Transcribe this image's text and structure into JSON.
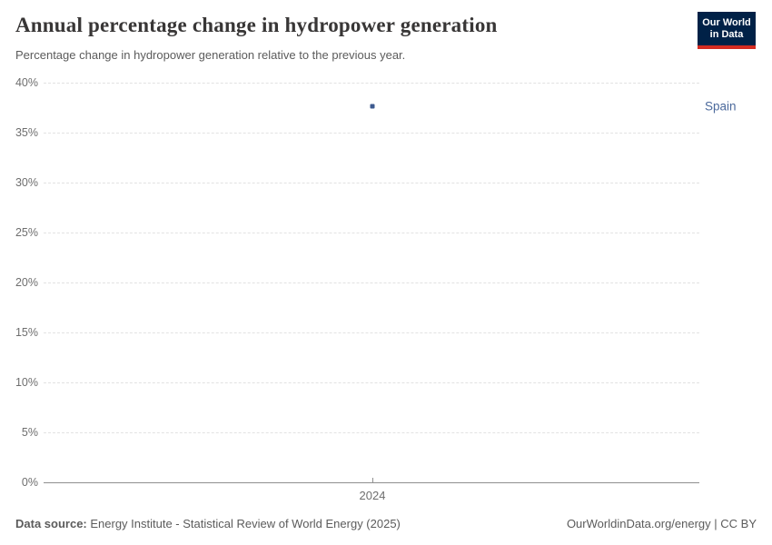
{
  "header": {
    "title": "Annual percentage change in hydropower generation",
    "subtitle": "Percentage change in hydropower generation relative to the previous year.",
    "logo": {
      "line1": "Our World",
      "line2": "in Data"
    }
  },
  "chart_data": {
    "type": "scatter",
    "title": "Annual percentage change in hydropower generation",
    "subtitle": "Percentage change in hydropower generation relative to the previous year.",
    "series": [
      {
        "name": "Spain",
        "points": [
          {
            "x": 2024,
            "y": 37.6
          }
        ]
      }
    ],
    "x_ticks": [
      {
        "value": 2024,
        "label": "2024"
      }
    ],
    "y_ticks": [
      {
        "value": 0,
        "label": "0%"
      },
      {
        "value": 5,
        "label": "5%"
      },
      {
        "value": 10,
        "label": "10%"
      },
      {
        "value": 15,
        "label": "15%"
      },
      {
        "value": 20,
        "label": "20%"
      },
      {
        "value": 25,
        "label": "25%"
      },
      {
        "value": 30,
        "label": "30%"
      },
      {
        "value": 35,
        "label": "35%"
      },
      {
        "value": 40,
        "label": "40%"
      }
    ],
    "ylim": [
      0,
      40
    ],
    "grid": "horizontal-dashed",
    "legend_position": "right-of-point",
    "colors": {
      "point": "#3d5a8f",
      "series_label": "#4c6a9c",
      "gridline": "#e2e2e2",
      "axis": "#8f8f8f"
    }
  },
  "footer": {
    "datasource_label": "Data source:",
    "datasource_text": " Energy Institute - Statistical Review of World Energy (2025)",
    "rights": "OurWorldinData.org/energy | CC BY"
  }
}
